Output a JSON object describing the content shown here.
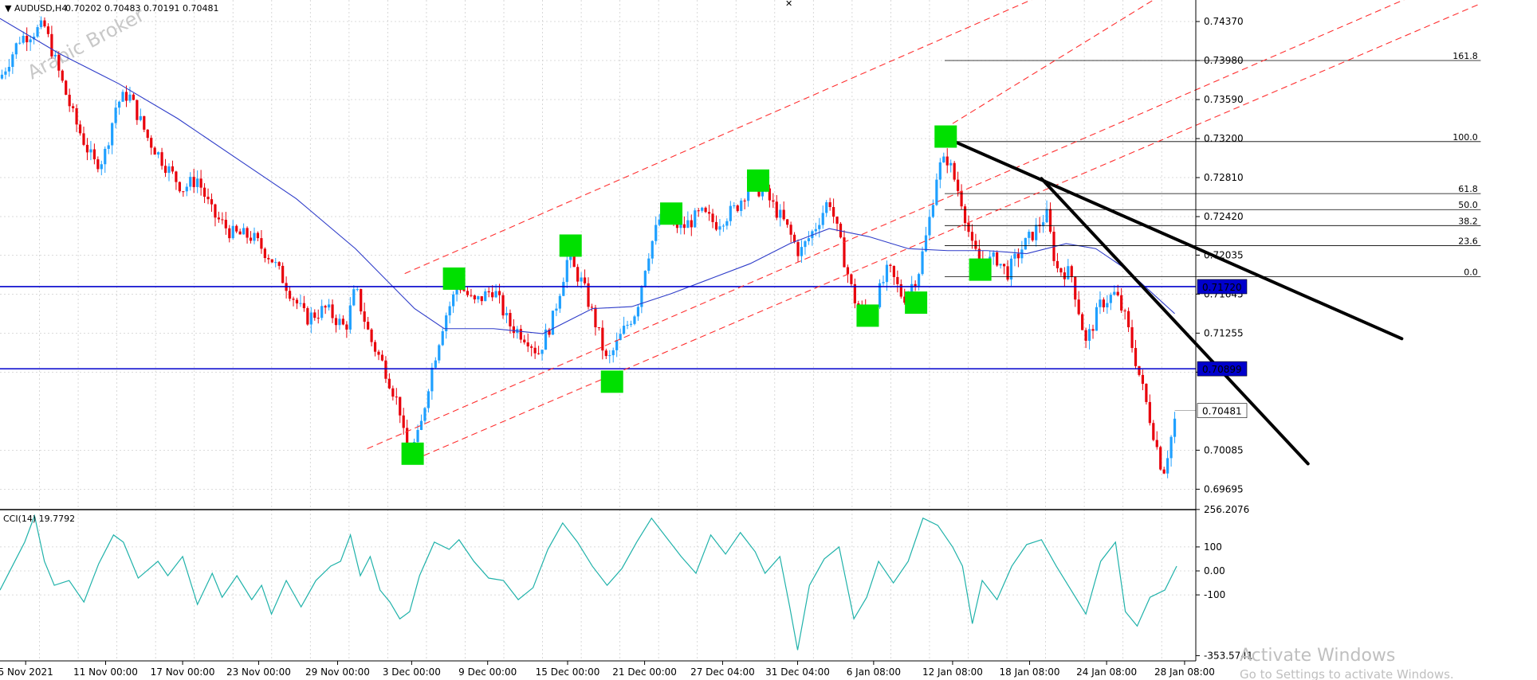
{
  "header": {
    "symbol_label": "AUDUSD,H4",
    "ohlc": "0.70202 0.70483 0.70191 0.70481"
  },
  "watermark": "Arabic Broker",
  "windows_notice": {
    "title": "Activate Windows",
    "subtitle": "Go to Settings to activate Windows."
  },
  "colors": {
    "bull": "#1fa0ff",
    "bear": "#e8000b",
    "ma": "#2e3cc9",
    "hline": "#0000cc",
    "channel": "#ff3030",
    "trend": "#000000",
    "cci": "#20b2aa",
    "marker": "#00e000",
    "grid": "#cfcfcf"
  },
  "chart_data": [
    {
      "type": "candlestick",
      "title": "AUDUSD,H4",
      "ohlc_last": {
        "open": 0.70202,
        "high": 0.70483,
        "low": 0.70191,
        "close": 0.70481
      },
      "ylim": [
        0.695,
        0.746
      ],
      "y_ticks": [
        "0.74370",
        "0.73980",
        "0.73590",
        "0.73200",
        "0.72810",
        "0.72420",
        "0.72035",
        "0.71645",
        "0.71255",
        "0.70865",
        "0.70085",
        "0.69695"
      ],
      "x_ticks": [
        "5 Nov 2021",
        "11 Nov 00:00",
        "17 Nov 00:00",
        "23 Nov 00:00",
        "29 Nov 00:00",
        "3 Dec 00:00",
        "9 Dec 00:00",
        "15 Dec 00:00",
        "21 Dec 00:00",
        "27 Dec 04:00",
        "31 Dec 04:00",
        "6 Jan 08:00",
        "12 Jan 08:00",
        "18 Jan 08:00",
        "24 Jan 08:00",
        "28 Jan 08:00"
      ],
      "price_path": [
        [
          0,
          0.738
        ],
        [
          20,
          0.742
        ],
        [
          45,
          0.7432
        ],
        [
          60,
          0.7385
        ],
        [
          75,
          0.734
        ],
        [
          95,
          0.7295
        ],
        [
          105,
          0.73
        ],
        [
          118,
          0.7355
        ],
        [
          130,
          0.7365
        ],
        [
          150,
          0.732
        ],
        [
          170,
          0.729
        ],
        [
          185,
          0.727
        ],
        [
          200,
          0.728
        ],
        [
          215,
          0.7245
        ],
        [
          235,
          0.7225
        ],
        [
          255,
          0.7222
        ],
        [
          275,
          0.72
        ],
        [
          295,
          0.7165
        ],
        [
          310,
          0.714
        ],
        [
          330,
          0.715
        ],
        [
          350,
          0.713
        ],
        [
          360,
          0.717
        ],
        [
          375,
          0.712
        ],
        [
          390,
          0.709
        ],
        [
          405,
          0.705
        ],
        [
          412,
          0.7
        ],
        [
          425,
          0.7025
        ],
        [
          435,
          0.708
        ],
        [
          450,
          0.714
        ],
        [
          465,
          0.7175
        ],
        [
          480,
          0.7155
        ],
        [
          500,
          0.717
        ],
        [
          515,
          0.7135
        ],
        [
          535,
          0.712
        ],
        [
          545,
          0.7105
        ],
        [
          560,
          0.714
        ],
        [
          575,
          0.72
        ],
        [
          590,
          0.7175
        ],
        [
          605,
          0.713
        ],
        [
          615,
          0.7095
        ],
        [
          630,
          0.7125
        ],
        [
          645,
          0.715
        ],
        [
          655,
          0.72
        ],
        [
          670,
          0.7245
        ],
        [
          690,
          0.723
        ],
        [
          710,
          0.7245
        ],
        [
          725,
          0.7235
        ],
        [
          745,
          0.725
        ],
        [
          760,
          0.7275
        ],
        [
          775,
          0.7265
        ],
        [
          795,
          0.7235
        ],
        [
          810,
          0.7205
        ],
        [
          825,
          0.723
        ],
        [
          840,
          0.726
        ],
        [
          855,
          0.72
        ],
        [
          865,
          0.716
        ],
        [
          880,
          0.714
        ],
        [
          900,
          0.719
        ],
        [
          915,
          0.716
        ],
        [
          930,
          0.7185
        ],
        [
          940,
          0.723
        ],
        [
          950,
          0.729
        ],
        [
          960,
          0.73
        ],
        [
          975,
          0.7255
        ],
        [
          985,
          0.721
        ],
        [
          995,
          0.7195
        ],
        [
          1010,
          0.72
        ],
        [
          1020,
          0.7185
        ],
        [
          1035,
          0.721
        ],
        [
          1050,
          0.723
        ],
        [
          1060,
          0.7245
        ],
        [
          1070,
          0.719
        ],
        [
          1085,
          0.7185
        ],
        [
          1100,
          0.7115
        ],
        [
          1115,
          0.7155
        ],
        [
          1130,
          0.7165
        ],
        [
          1140,
          0.714
        ],
        [
          1150,
          0.71
        ],
        [
          1160,
          0.706
        ],
        [
          1170,
          0.702
        ],
        [
          1178,
          0.6985
        ],
        [
          1185,
          0.7015
        ],
        [
          1192,
          0.7048
        ]
      ],
      "moving_average": [
        [
          0,
          0.744
        ],
        [
          60,
          0.7405
        ],
        [
          120,
          0.7375
        ],
        [
          180,
          0.734
        ],
        [
          240,
          0.73
        ],
        [
          300,
          0.726
        ],
        [
          360,
          0.721
        ],
        [
          420,
          0.715
        ],
        [
          450,
          0.713
        ],
        [
          500,
          0.713
        ],
        [
          550,
          0.7125
        ],
        [
          600,
          0.715
        ],
        [
          640,
          0.7152
        ],
        [
          680,
          0.7165
        ],
        [
          720,
          0.718
        ],
        [
          760,
          0.7195
        ],
        [
          800,
          0.7215
        ],
        [
          840,
          0.723
        ],
        [
          880,
          0.7222
        ],
        [
          920,
          0.721
        ],
        [
          960,
          0.7208
        ],
        [
          1000,
          0.7208
        ],
        [
          1040,
          0.7205
        ],
        [
          1080,
          0.7215
        ],
        [
          1110,
          0.721
        ],
        [
          1140,
          0.719
        ],
        [
          1190,
          0.7145
        ]
      ],
      "horizontal_levels": [
        "0.71720",
        "0.70899"
      ],
      "current_price": "0.70481",
      "fibonacci": [
        {
          "level": "161.8",
          "price": 0.7398
        },
        {
          "level": "100.0",
          "price": 0.7317
        },
        {
          "level": "61.8",
          "price": 0.7265
        },
        {
          "level": "50.0",
          "price": 0.7249
        },
        {
          "level": "38.2",
          "price": 0.7233
        },
        {
          "level": "23.6",
          "price": 0.7213
        },
        {
          "level": "0.0",
          "price": 0.7182
        }
      ],
      "channel_lines": [
        [
          [
            372,
            0.701
          ],
          [
            1500,
            0.7492
          ]
        ],
        [
          [
            410,
            0.7185
          ],
          [
            1500,
            0.7655
          ]
        ],
        [
          [
            410,
            0.6995
          ],
          [
            1500,
            0.7455
          ]
        ],
        [
          [
            965,
            0.7335
          ],
          [
            1500,
            0.766
          ]
        ]
      ],
      "trend_lines": [
        [
          [
            960,
            0.732
          ],
          [
            1420,
            0.712
          ]
        ],
        [
          [
            1055,
            0.728
          ],
          [
            1325,
            0.6995
          ]
        ]
      ],
      "dashed_connector": [
        [
          960,
          0.732
        ],
        [
          1055,
          0.728
        ]
      ],
      "markers": [
        [
          418,
          0.7005
        ],
        [
          460,
          0.718
        ],
        [
          578,
          0.7213
        ],
        [
          620,
          0.7077
        ],
        [
          680,
          0.7245
        ],
        [
          768,
          0.7278
        ],
        [
          879,
          0.7143
        ],
        [
          928,
          0.7156
        ],
        [
          958,
          0.7322
        ],
        [
          993,
          0.7189
        ]
      ]
    },
    {
      "type": "line",
      "title": "CCI(14) 19.7792",
      "indicator_name": "CCI(14)",
      "last_value": "19.7792",
      "ylim": [
        -353.5741,
        256.2076
      ],
      "y_ticks": [
        "256.2076",
        "100",
        "0.00",
        "-100",
        "-353.5741"
      ],
      "values": [
        [
          0,
          -80
        ],
        [
          15,
          40
        ],
        [
          25,
          120
        ],
        [
          35,
          230
        ],
        [
          45,
          40
        ],
        [
          55,
          -60
        ],
        [
          70,
          -40
        ],
        [
          85,
          -130
        ],
        [
          100,
          30
        ],
        [
          115,
          150
        ],
        [
          125,
          120
        ],
        [
          140,
          -30
        ],
        [
          160,
          40
        ],
        [
          170,
          -20
        ],
        [
          185,
          60
        ],
        [
          200,
          -140
        ],
        [
          215,
          -10
        ],
        [
          225,
          -110
        ],
        [
          240,
          -20
        ],
        [
          255,
          -120
        ],
        [
          265,
          -60
        ],
        [
          275,
          -180
        ],
        [
          290,
          -40
        ],
        [
          305,
          -150
        ],
        [
          320,
          -40
        ],
        [
          335,
          20
        ],
        [
          345,
          40
        ],
        [
          355,
          150
        ],
        [
          365,
          -20
        ],
        [
          375,
          60
        ],
        [
          385,
          -80
        ],
        [
          395,
          -130
        ],
        [
          405,
          -200
        ],
        [
          415,
          -170
        ],
        [
          425,
          -20
        ],
        [
          440,
          120
        ],
        [
          455,
          90
        ],
        [
          465,
          130
        ],
        [
          480,
          40
        ],
        [
          495,
          -30
        ],
        [
          510,
          -40
        ],
        [
          525,
          -120
        ],
        [
          540,
          -70
        ],
        [
          555,
          90
        ],
        [
          570,
          200
        ],
        [
          585,
          120
        ],
        [
          600,
          20
        ],
        [
          615,
          -60
        ],
        [
          630,
          10
        ],
        [
          645,
          120
        ],
        [
          660,
          220
        ],
        [
          675,
          140
        ],
        [
          690,
          60
        ],
        [
          705,
          -10
        ],
        [
          720,
          150
        ],
        [
          735,
          70
        ],
        [
          750,
          160
        ],
        [
          765,
          80
        ],
        [
          775,
          -10
        ],
        [
          790,
          60
        ],
        [
          800,
          -150
        ],
        [
          808,
          -330
        ],
        [
          820,
          -60
        ],
        [
          835,
          50
        ],
        [
          850,
          100
        ],
        [
          865,
          -200
        ],
        [
          878,
          -110
        ],
        [
          890,
          40
        ],
        [
          905,
          -50
        ],
        [
          920,
          40
        ],
        [
          935,
          220
        ],
        [
          950,
          190
        ],
        [
          965,
          100
        ],
        [
          975,
          20
        ],
        [
          985,
          -220
        ],
        [
          995,
          -40
        ],
        [
          1010,
          -120
        ],
        [
          1025,
          20
        ],
        [
          1040,
          110
        ],
        [
          1055,
          130
        ],
        [
          1070,
          20
        ],
        [
          1085,
          -80
        ],
        [
          1100,
          -180
        ],
        [
          1115,
          40
        ],
        [
          1130,
          120
        ],
        [
          1140,
          -170
        ],
        [
          1152,
          -230
        ],
        [
          1165,
          -110
        ],
        [
          1180,
          -80
        ],
        [
          1192,
          20
        ]
      ]
    }
  ]
}
